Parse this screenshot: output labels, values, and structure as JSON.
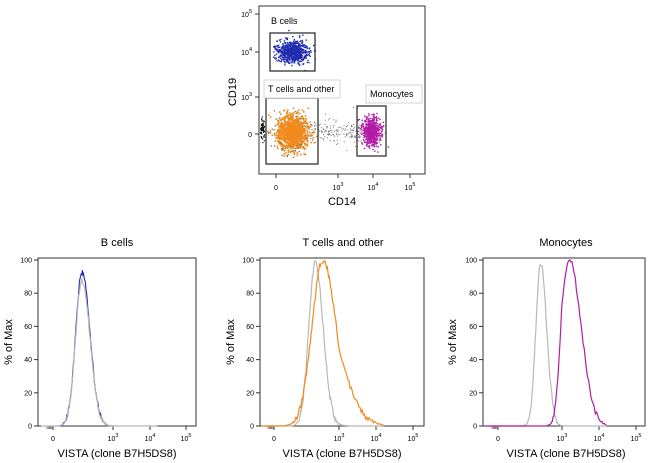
{
  "colors": {
    "b_cells": "#1f2bb0",
    "t_cells": "#f08a1c",
    "t_cells_dark": "#9a6a1a",
    "monocytes": "#b21ba6",
    "control": "#b8b8b8",
    "axis": "#333333"
  },
  "chart_data": [
    {
      "type": "scatter",
      "xlabel": "CD14",
      "ylabel": "CD19",
      "x_tick_labels": [
        "0",
        "10^3",
        "10^4",
        "10^5"
      ],
      "y_tick_labels": [
        "0",
        "10^3",
        "10^4",
        "10^5"
      ],
      "scale": "biexponential",
      "gates": [
        {
          "name": "B cells",
          "cd14": [
            -0.3,
            2.6
          ],
          "cd19": [
            3.75,
            4.4
          ],
          "color": "#1f2bb0"
        },
        {
          "name": "T cells and other",
          "cd14": [
            -0.3,
            3.6
          ],
          "cd19": [
            -0.6,
            2.3
          ],
          "color": "#f08a1c"
        },
        {
          "name": "Monocytes",
          "cd14": [
            3.5,
            4.1
          ],
          "cd19": [
            -0.5,
            2.0
          ],
          "color": "#b21ba6"
        }
      ]
    },
    {
      "type": "line",
      "title": "B cells",
      "xlabel": "VISTA (clone B7H5DS8)",
      "ylabel": "% of Max",
      "ylim": [
        0,
        100
      ],
      "y_ticks": [
        "0",
        "20",
        "40",
        "60",
        "80",
        "100"
      ],
      "x_tick_labels": [
        "0",
        "10^3",
        "10^4",
        "10^5"
      ],
      "series": [
        {
          "color": "#1f2bb0",
          "peak_x": 1.45,
          "peak_y": 93,
          "width": 0.45
        },
        {
          "color": "#b8b8b8",
          "peak_x": 1.45,
          "peak_y": 88,
          "width": 0.45
        }
      ]
    },
    {
      "type": "line",
      "title": "T cells and other",
      "xlabel": "VISTA (clone B7H5DS8)",
      "ylabel": "% of Max",
      "ylim": [
        0,
        100
      ],
      "y_ticks": [
        "0",
        "20",
        "40",
        "60",
        "80",
        "100"
      ],
      "x_tick_labels": [
        "0",
        "10^3",
        "10^4",
        "10^5"
      ],
      "series": [
        {
          "color": "#b8b8b8",
          "peak_x": 1.9,
          "peak_y": 98,
          "width": 0.42
        },
        {
          "color": "#f08a1c",
          "peak_x": 2.25,
          "peak_y": 100,
          "width": 0.7
        }
      ]
    },
    {
      "type": "line",
      "title": "Monocytes",
      "xlabel": "VISTA (clone B7H5DS8)",
      "ylabel": "% of Max",
      "ylim": [
        0,
        100
      ],
      "y_ticks": [
        "0",
        "20",
        "40",
        "60",
        "80",
        "100"
      ],
      "x_tick_labels": [
        "0",
        "10^3",
        "10^4",
        "10^5"
      ],
      "series": [
        {
          "color": "#b8b8b8",
          "peak_x": 2.0,
          "peak_y": 98,
          "width": 0.32
        },
        {
          "color": "#b21ba6",
          "peak_x": 3.2,
          "peak_y": 100,
          "width": 0.36
        }
      ]
    }
  ]
}
